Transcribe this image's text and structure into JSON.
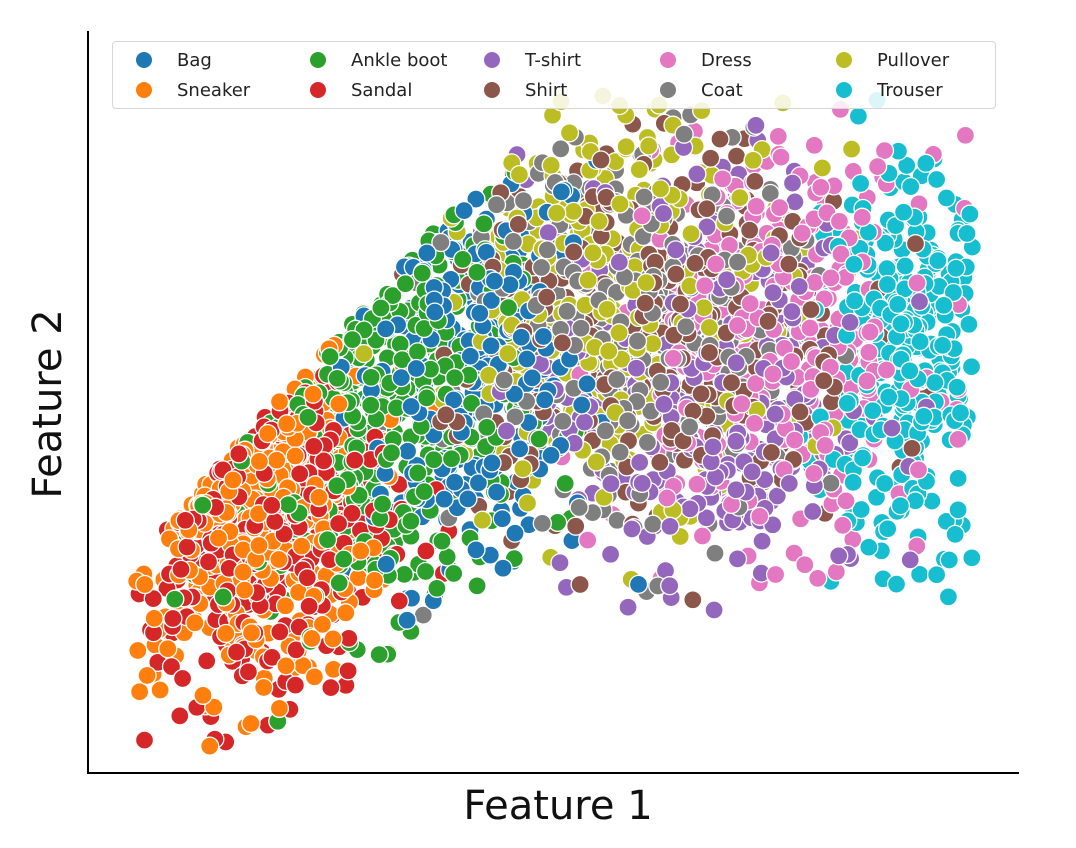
{
  "chart_data": {
    "type": "scatter",
    "title": "",
    "xlabel": "Feature 1",
    "ylabel": "Feature 2",
    "xticks": [],
    "yticks": [],
    "grid": false,
    "legend_placement": "top, inside, 6 columns",
    "xlim": [
      0,
      100
    ],
    "ylim": [
      0,
      100
    ],
    "series": [
      {
        "name": "Bag",
        "color": "#1f77b4",
        "clusters": [
          {
            "cx": 41,
            "cy": 58,
            "sx": 7,
            "sy": 16,
            "n": 320
          }
        ]
      },
      {
        "name": "Sneaker",
        "color": "#ff7f0e",
        "clusters": [
          {
            "cx": 15,
            "cy": 40,
            "sx": 7,
            "sy": 14,
            "n": 420
          }
        ]
      },
      {
        "name": "Ankle boot",
        "color": "#2ca02c",
        "clusters": [
          {
            "cx": 30,
            "cy": 52,
            "sx": 8,
            "sy": 16,
            "n": 420
          }
        ]
      },
      {
        "name": "Sandal",
        "color": "#d62728",
        "clusters": [
          {
            "cx": 16,
            "cy": 40,
            "sx": 8,
            "sy": 15,
            "n": 360
          }
        ]
      },
      {
        "name": "T-shirt",
        "color": "#9467bd",
        "clusters": [
          {
            "cx": 67,
            "cy": 55,
            "sx": 10,
            "sy": 15,
            "n": 330
          }
        ]
      },
      {
        "name": "Shirt",
        "color": "#8c564b",
        "clusters": [
          {
            "cx": 62,
            "cy": 62,
            "sx": 12,
            "sy": 14,
            "n": 340
          }
        ]
      },
      {
        "name": "Dress",
        "color": "#e377c2",
        "clusters": [
          {
            "cx": 76,
            "cy": 60,
            "sx": 9,
            "sy": 14,
            "n": 330
          }
        ]
      },
      {
        "name": "Coat",
        "color": "#7f7f7f",
        "clusters": [
          {
            "cx": 58,
            "cy": 62,
            "sx": 10,
            "sy": 15,
            "n": 320
          }
        ]
      },
      {
        "name": "Pullover",
        "color": "#bcbd22",
        "clusters": [
          {
            "cx": 57,
            "cy": 68,
            "sx": 11,
            "sy": 14,
            "n": 330
          }
        ]
      },
      {
        "name": "Trouser",
        "color": "#17becf",
        "clusters": [
          {
            "cx": 90,
            "cy": 58,
            "sx": 5,
            "sy": 13,
            "n": 340
          }
        ]
      }
    ]
  }
}
